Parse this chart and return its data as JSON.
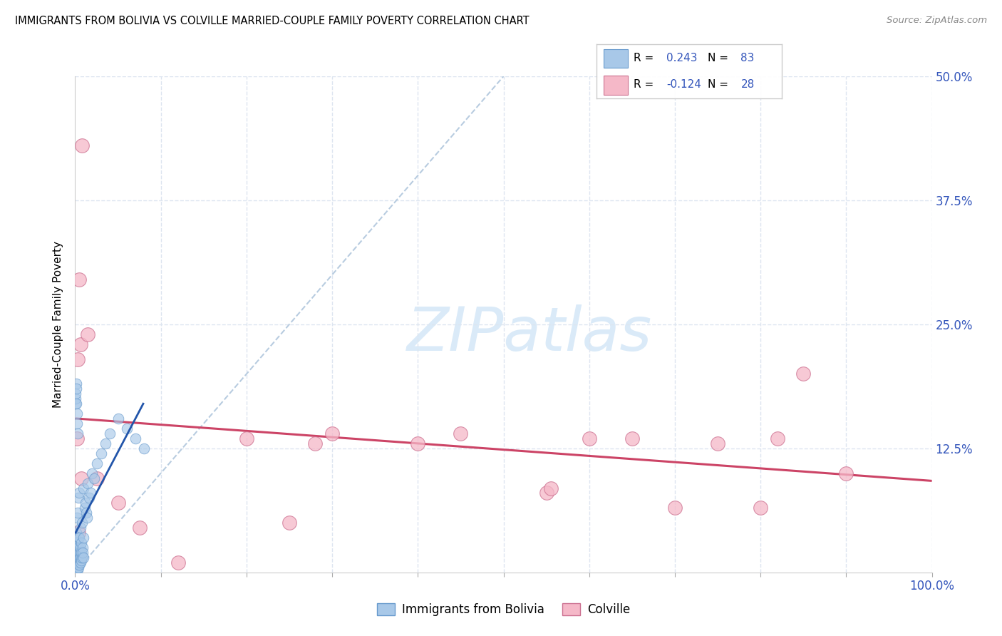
{
  "title": "IMMIGRANTS FROM BOLIVIA VS COLVILLE MARRIED-COUPLE FAMILY POVERTY CORRELATION CHART",
  "source": "Source: ZipAtlas.com",
  "ylabel": "Married-Couple Family Poverty",
  "x_tick_labels": [
    "0.0%",
    "",
    "",
    "",
    "",
    "",
    "",
    "",
    "",
    "",
    "100.0%"
  ],
  "x_tick_values": [
    0,
    10,
    20,
    30,
    40,
    50,
    60,
    70,
    80,
    90,
    100
  ],
  "y_tick_labels": [
    "12.5%",
    "25.0%",
    "37.5%",
    "50.0%"
  ],
  "y_tick_values": [
    12.5,
    25.0,
    37.5,
    50.0
  ],
  "xlim": [
    0,
    100
  ],
  "ylim": [
    0,
    50
  ],
  "legend_labels": [
    "Immigrants from Bolivia",
    "Colville"
  ],
  "R_bolivia": "0.243",
  "N_bolivia": "83",
  "R_colville": "-0.124",
  "N_colville": "28",
  "blue_scatter_color": "#a8c8e8",
  "blue_scatter_edge": "#6699cc",
  "pink_scatter_color": "#f5b8c8",
  "pink_scatter_edge": "#cc7090",
  "blue_line_color": "#2255aa",
  "pink_line_color": "#cc4466",
  "diagonal_color": "#b8cce0",
  "grid_color": "#dde5f0",
  "watermark_color": "#daeaf8",
  "bolivia_x": [
    0.05,
    0.05,
    0.05,
    0.05,
    0.08,
    0.08,
    0.1,
    0.1,
    0.1,
    0.1,
    0.12,
    0.12,
    0.14,
    0.15,
    0.15,
    0.15,
    0.16,
    0.18,
    0.18,
    0.2,
    0.2,
    0.2,
    0.22,
    0.22,
    0.25,
    0.25,
    0.28,
    0.3,
    0.3,
    0.3,
    0.32,
    0.35,
    0.35,
    0.4,
    0.4,
    0.4,
    0.42,
    0.45,
    0.48,
    0.5,
    0.5,
    0.5,
    0.55,
    0.6,
    0.6,
    0.62,
    0.65,
    0.7,
    0.72,
    0.75,
    0.8,
    0.8,
    0.85,
    0.9,
    0.95,
    1.0,
    1.0,
    1.1,
    1.2,
    1.3,
    1.4,
    1.5,
    1.6,
    1.8,
    2.0,
    2.2,
    2.5,
    3.0,
    3.5,
    4.0,
    5.0,
    6.0,
    7.0,
    8.0,
    0.05,
    0.06,
    0.08,
    0.1,
    0.12,
    0.15,
    0.2,
    0.25,
    0.3
  ],
  "bolivia_y": [
    0.2,
    0.5,
    1.0,
    2.0,
    0.3,
    1.5,
    0.2,
    0.8,
    1.5,
    3.0,
    0.5,
    2.0,
    0.8,
    0.3,
    1.2,
    4.0,
    0.5,
    1.0,
    3.0,
    0.4,
    1.5,
    5.5,
    1.0,
    2.5,
    0.5,
    3.0,
    1.2,
    0.3,
    2.0,
    6.0,
    1.0,
    0.8,
    3.5,
    0.5,
    2.5,
    7.5,
    1.5,
    2.0,
    1.0,
    0.8,
    3.5,
    8.0,
    2.0,
    1.0,
    4.5,
    2.5,
    1.5,
    2.0,
    1.2,
    3.0,
    1.5,
    5.0,
    2.5,
    2.0,
    3.5,
    1.5,
    8.5,
    6.5,
    7.0,
    6.0,
    5.5,
    9.0,
    7.5,
    8.0,
    10.0,
    9.5,
    11.0,
    12.0,
    13.0,
    14.0,
    15.5,
    14.5,
    13.5,
    12.5,
    17.0,
    17.5,
    18.0,
    19.0,
    18.5,
    17.0,
    16.0,
    15.0,
    14.0
  ],
  "colville_x": [
    0.3,
    0.5,
    0.6,
    0.8,
    1.5,
    2.5,
    5.0,
    7.5,
    12.0,
    20.0,
    25.0,
    28.0,
    40.0,
    55.0,
    55.5,
    65.0,
    70.0,
    75.0,
    80.0,
    82.0,
    85.0,
    90.0,
    45.0,
    60.0,
    30.0,
    0.2,
    0.4,
    0.7
  ],
  "colville_y": [
    21.5,
    29.5,
    23.0,
    43.0,
    24.0,
    9.5,
    7.0,
    4.5,
    1.0,
    13.5,
    5.0,
    13.0,
    13.0,
    8.0,
    8.5,
    13.5,
    6.5,
    13.0,
    6.5,
    13.5,
    20.0,
    10.0,
    14.0,
    13.5,
    14.0,
    13.5,
    4.0,
    9.5
  ]
}
